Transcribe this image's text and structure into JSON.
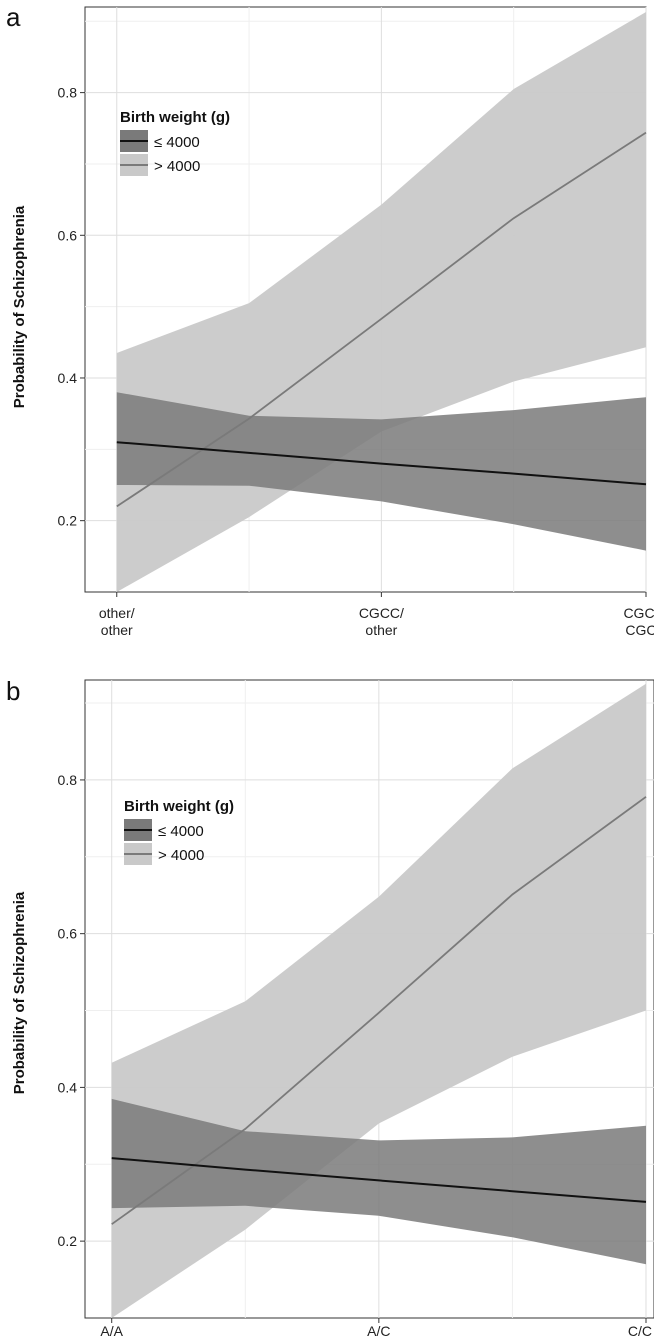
{
  "chart_data": [
    {
      "panel": "a",
      "type": "line",
      "ylabel": "Probability of Schizophrenia",
      "x_ticks": [
        [
          "other/",
          "other"
        ],
        [
          "CGCC/",
          "other"
        ],
        [
          "CGCC/",
          "CGCC"
        ]
      ],
      "y_ticks": [
        "0.2",
        "0.4",
        "0.6",
        "0.8"
      ],
      "ylim": [
        0.1,
        0.92
      ],
      "xlim": [
        -0.12,
        2.0
      ],
      "grid": true,
      "legend": {
        "title": "Birth weight (g)",
        "placement": "top-left",
        "entries": [
          "≤ 4000",
          "> 4000"
        ]
      },
      "series": [
        {
          "name": "≤ 4000",
          "color": "#111111",
          "band_color": "#7a7a7a",
          "x": [
            0,
            0.5,
            1,
            1.5,
            2
          ],
          "y": [
            0.31,
            0.295,
            0.28,
            0.266,
            0.251
          ],
          "lower": [
            0.25,
            0.249,
            0.227,
            0.195,
            0.158
          ],
          "upper": [
            0.38,
            0.347,
            0.342,
            0.355,
            0.373
          ]
        },
        {
          "name": "> 4000",
          "color": "#7a7a7a",
          "band_color": "#c9c9c9",
          "x": [
            0,
            0.5,
            1,
            1.5,
            2
          ],
          "y": [
            0.22,
            0.343,
            0.483,
            0.624,
            0.744
          ],
          "lower": [
            0.1,
            0.205,
            0.325,
            0.395,
            0.443
          ],
          "upper": [
            0.435,
            0.505,
            0.643,
            0.805,
            0.913
          ]
        }
      ]
    },
    {
      "panel": "b",
      "type": "line",
      "ylabel": "Probability of Schizophrenia",
      "x_ticks": [
        [
          "A/A"
        ],
        [
          "A/C"
        ],
        [
          "C/C"
        ]
      ],
      "y_ticks": [
        "0.2",
        "0.4",
        "0.6",
        "0.8"
      ],
      "ylim": [
        0.1,
        0.93
      ],
      "xlim": [
        -0.1,
        2.03
      ],
      "grid": true,
      "legend": {
        "title": "Birth weight (g)",
        "placement": "top-left",
        "entries": [
          "≤ 4000",
          "> 4000"
        ]
      },
      "series": [
        {
          "name": "≤ 4000",
          "color": "#111111",
          "band_color": "#7a7a7a",
          "x": [
            0,
            0.5,
            1,
            1.5,
            2
          ],
          "y": [
            0.308,
            0.293,
            0.279,
            0.265,
            0.251
          ],
          "lower": [
            0.243,
            0.246,
            0.233,
            0.205,
            0.17
          ],
          "upper": [
            0.385,
            0.343,
            0.331,
            0.335,
            0.35
          ]
        },
        {
          "name": "> 4000",
          "color": "#7a7a7a",
          "band_color": "#c9c9c9",
          "x": [
            0,
            0.5,
            1,
            1.5,
            2
          ],
          "y": [
            0.222,
            0.346,
            0.497,
            0.651,
            0.778
          ],
          "lower": [
            0.1,
            0.215,
            0.353,
            0.44,
            0.5
          ],
          "upper": [
            0.432,
            0.512,
            0.648,
            0.815,
            0.925
          ]
        }
      ]
    }
  ]
}
